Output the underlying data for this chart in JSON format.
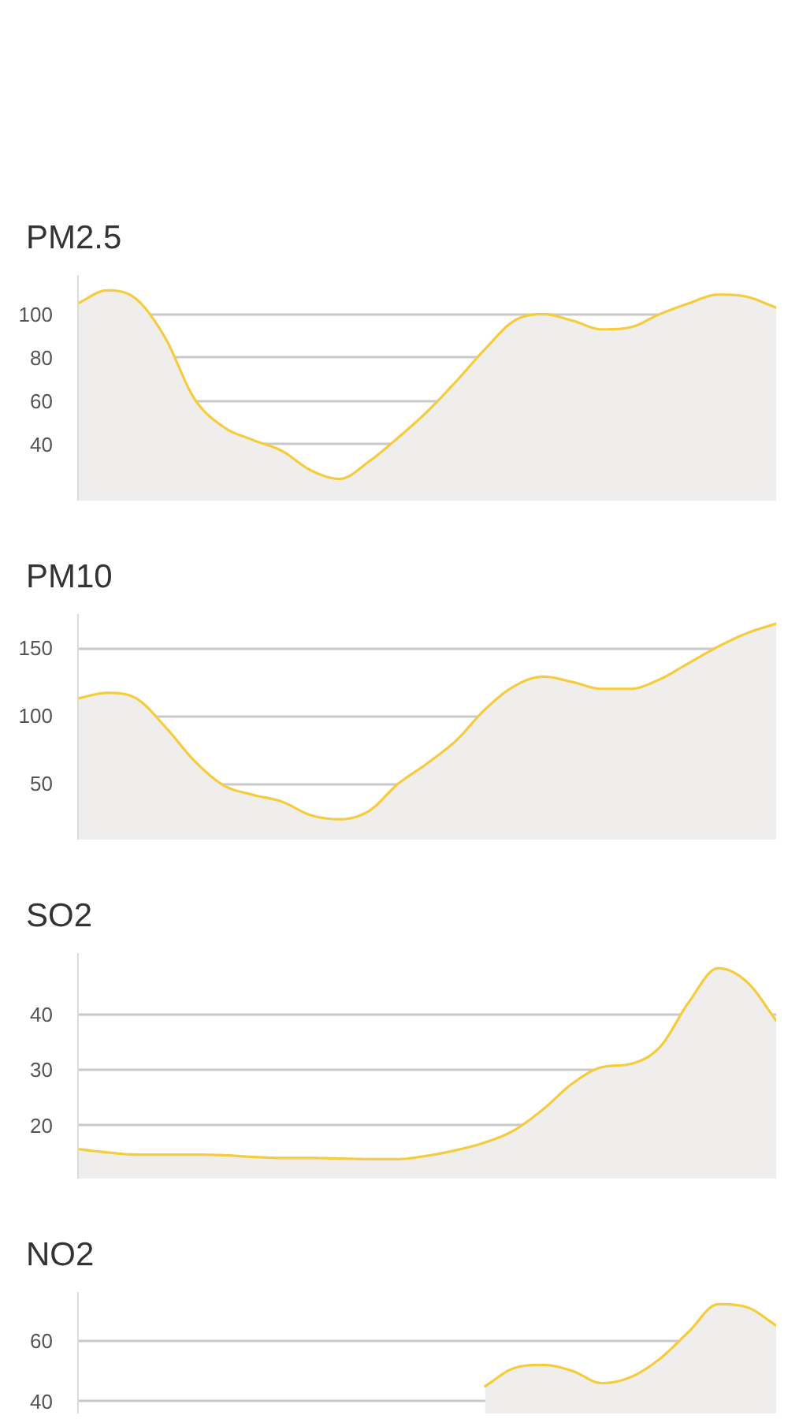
{
  "chart_data": [
    {
      "type": "area",
      "title": "PM2.5",
      "categories": [
        null,
        null,
        null,
        null,
        null,
        null,
        null,
        null,
        null,
        null,
        null,
        null,
        null,
        null,
        null,
        null,
        null,
        null,
        null,
        null,
        null,
        null,
        null,
        null,
        null
      ],
      "series": [
        {
          "color": "#f4cc3e",
          "values": [
            105,
            111,
            107,
            89,
            61,
            48,
            42,
            37,
            28,
            24,
            32,
            43,
            55,
            69,
            84,
            97,
            100,
            97,
            93,
            94,
            100,
            105,
            109,
            108,
            103
          ]
        }
      ],
      "ylim": [
        14,
        118
      ],
      "yticks": [
        40,
        60,
        80,
        100
      ],
      "grid": "y",
      "tick_labels": "y"
    },
    {
      "type": "area",
      "title": "PM10",
      "categories": [
        null,
        null,
        null,
        null,
        null,
        null,
        null,
        null,
        null,
        null,
        null,
        null,
        null,
        null,
        null,
        null,
        null,
        null,
        null,
        null,
        null,
        null,
        null,
        null,
        null
      ],
      "series": [
        {
          "color": "#f4cc3e",
          "values": [
            113,
            117,
            113,
            92,
            67,
            49,
            42,
            37,
            27,
            24,
            30,
            50,
            65,
            82,
            105,
            122,
            129,
            125,
            120,
            120,
            127,
            139,
            151,
            161,
            168
          ]
        }
      ],
      "ylim": [
        9,
        175
      ],
      "yticks": [
        50,
        100,
        150
      ],
      "grid": "y",
      "tick_labels": "y"
    },
    {
      "type": "area",
      "title": "SO2",
      "categories": [
        null,
        null,
        null,
        null,
        null,
        null,
        null,
        null,
        null,
        null,
        null,
        null,
        null,
        null,
        null,
        null,
        null,
        null,
        null,
        null,
        null,
        null,
        null,
        null,
        null
      ],
      "series": [
        {
          "color": "#f4cc3e",
          "values": [
            15.8,
            15.2,
            14.8,
            14.8,
            14.8,
            14.7,
            14.4,
            14.2,
            14.2,
            14.1,
            14.0,
            14.0,
            14.6,
            15.6,
            17,
            19.2,
            23,
            27.6,
            30.5,
            31.1,
            34.1,
            42.2,
            48.3,
            45.8,
            38.9
          ]
        }
      ],
      "ylim": [
        10.5,
        51
      ],
      "yticks": [
        20,
        30,
        40
      ],
      "grid": "y",
      "tick_labels": "y"
    },
    {
      "type": "area",
      "title": "NO2",
      "categories": [
        null,
        null,
        null,
        null,
        null,
        null,
        null,
        null,
        null,
        null,
        null,
        null,
        null,
        null,
        null,
        null,
        null,
        null,
        null,
        null,
        null,
        null,
        null,
        null,
        null
      ],
      "series": [
        {
          "color": "#f4cc3e",
          "values": [
            null,
            null,
            null,
            null,
            null,
            null,
            null,
            null,
            null,
            null,
            null,
            null,
            null,
            null,
            45,
            51,
            52,
            50,
            46,
            48,
            54,
            63,
            72,
            71,
            65
          ]
        }
      ],
      "ylim": [
        36,
        76
      ],
      "yticks": [
        40,
        60
      ],
      "grid": "y",
      "tick_labels": "y"
    }
  ]
}
